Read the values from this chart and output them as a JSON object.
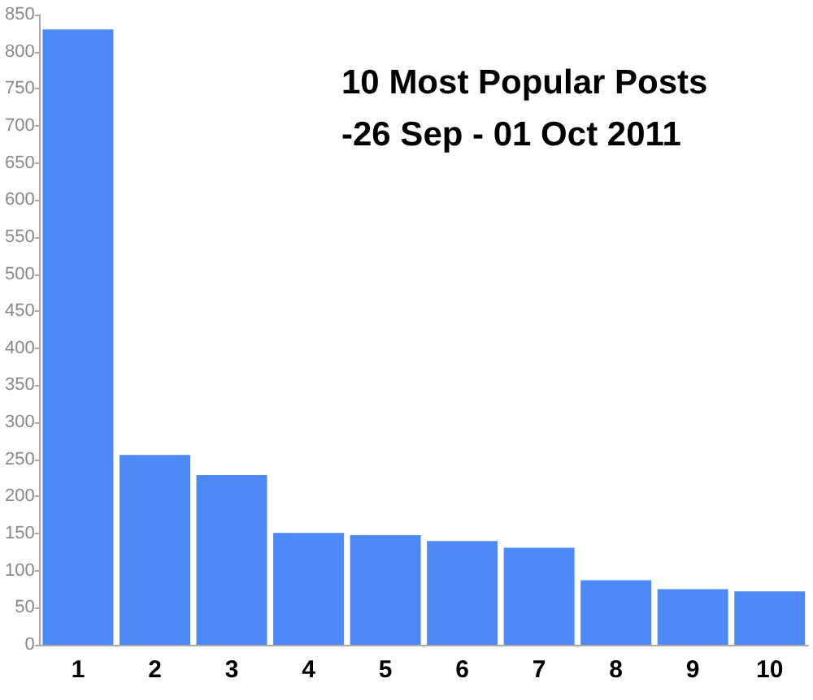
{
  "chart_data": {
    "type": "bar",
    "title": "10 Most Popular Posts\n-26 Sep - 01 Oct 2011",
    "categories": [
      "1",
      "2",
      "3",
      "4",
      "5",
      "6",
      "7",
      "8",
      "9",
      "10"
    ],
    "values": [
      830,
      256,
      229,
      151,
      148,
      140,
      131,
      87,
      75,
      72
    ],
    "color": "#4e89f8",
    "ylim": [
      0,
      850
    ],
    "yticks": [
      0,
      50,
      100,
      150,
      200,
      250,
      300,
      350,
      400,
      450,
      500,
      550,
      600,
      650,
      700,
      750,
      800,
      850
    ],
    "grid": false
  }
}
